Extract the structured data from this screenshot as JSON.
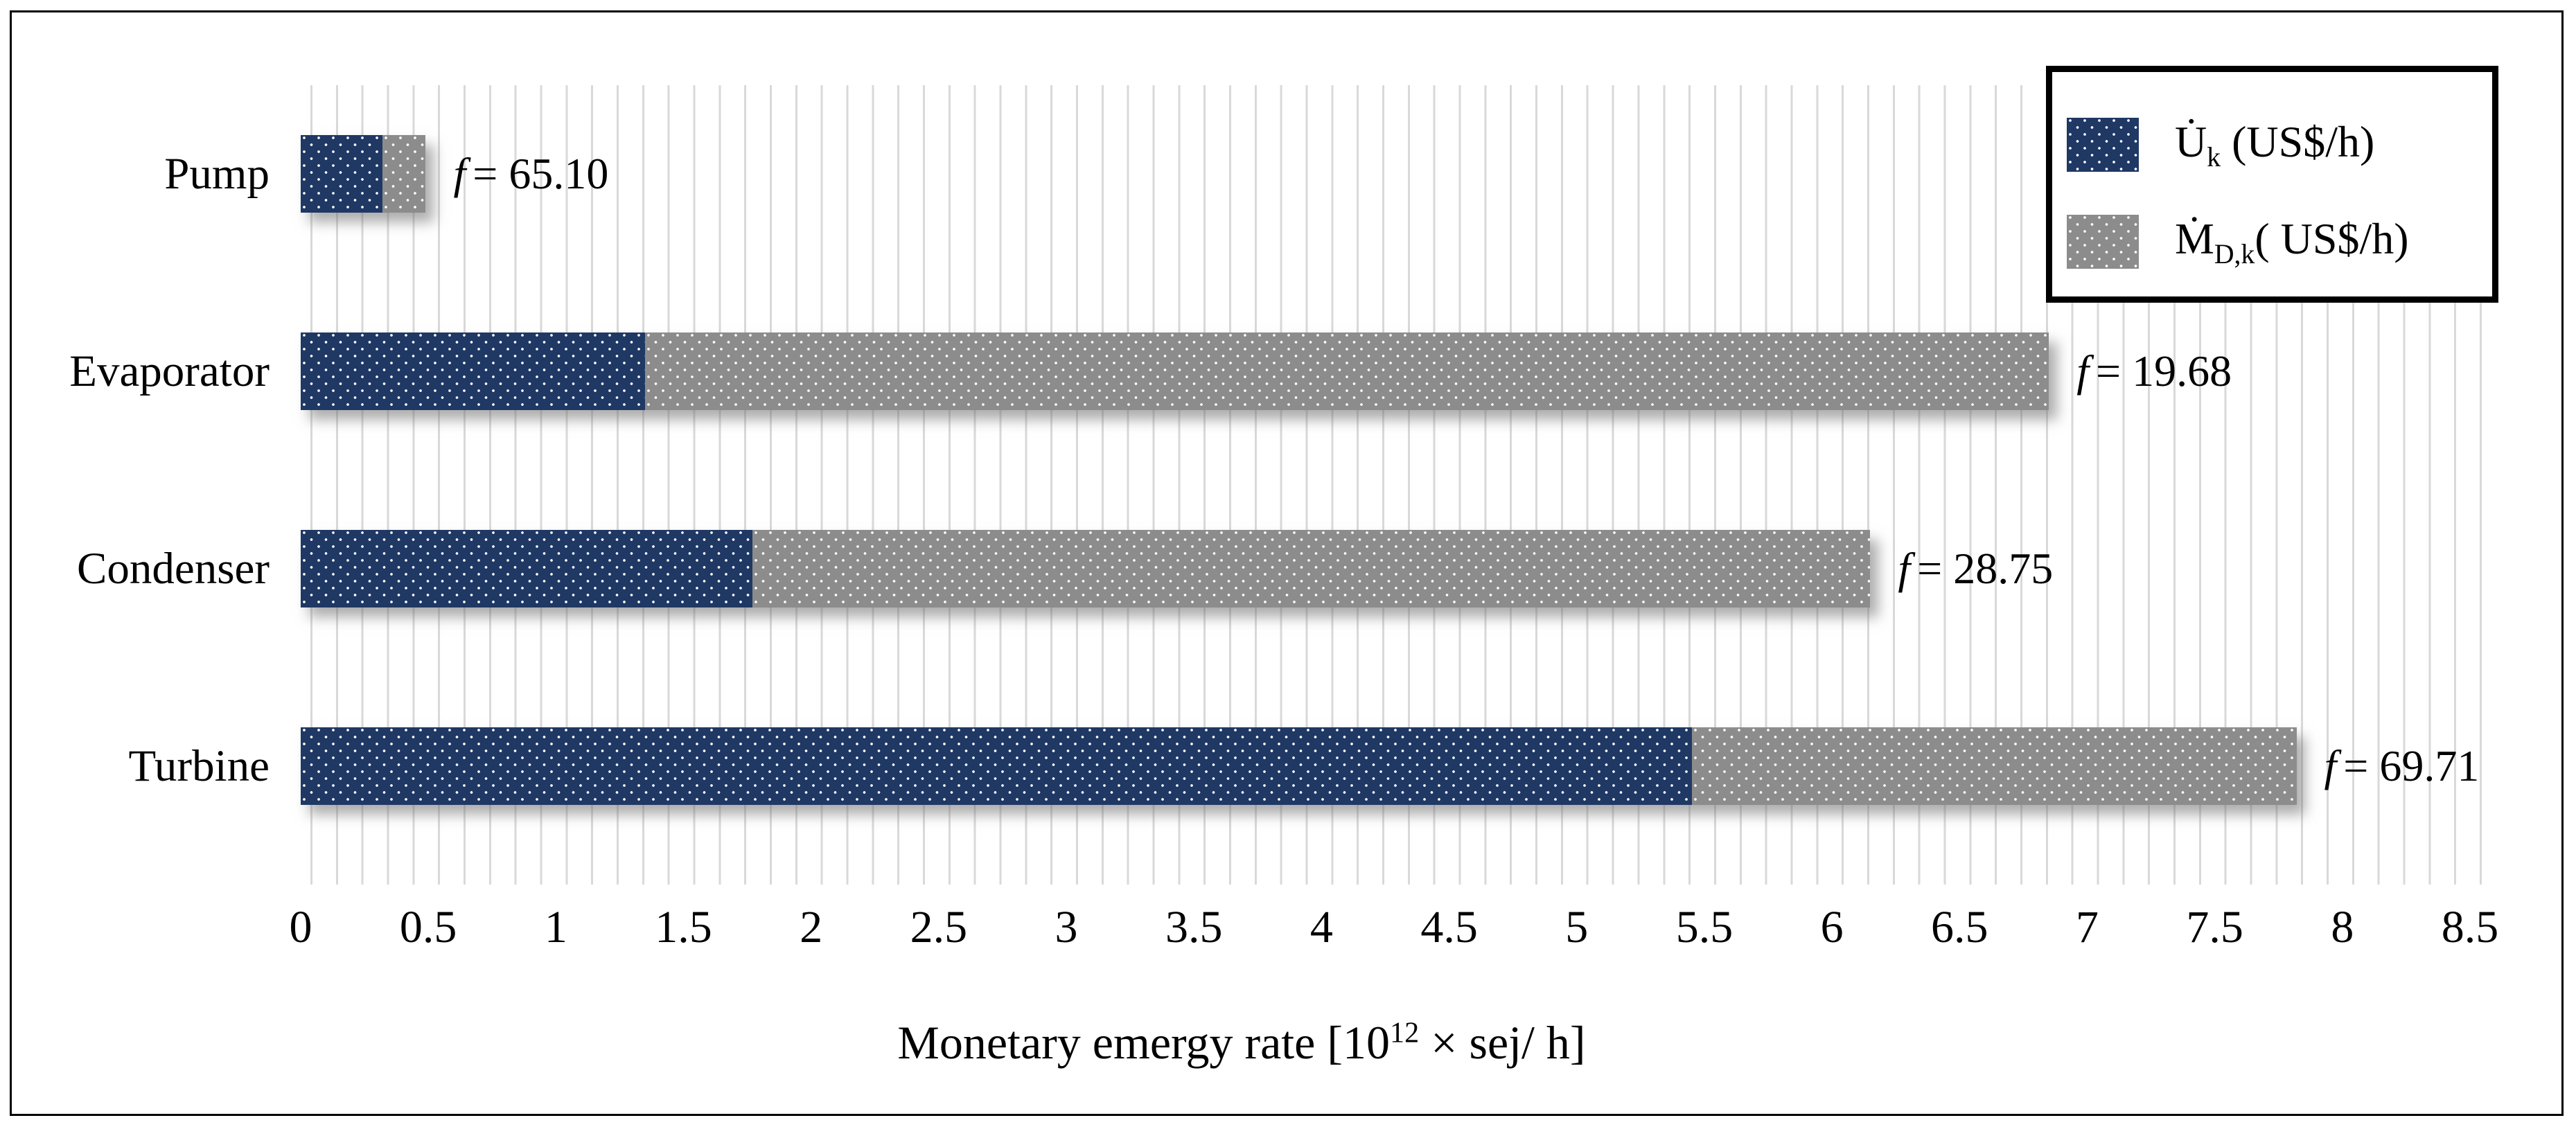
{
  "chart_data": {
    "type": "bar",
    "orientation": "horizontal",
    "stacked": true,
    "grid": "minor-vertical",
    "legend_position": "top-right",
    "categories": [
      "Pump",
      "Evaporator",
      "Condenser",
      "Turbine"
    ],
    "series": [
      {
        "name": "U̇k (US$/h)",
        "color": "#1F3864",
        "values": [
          0.32,
          1.35,
          1.77,
          5.45
        ]
      },
      {
        "name": "ṀD,k( US$/h)",
        "color": "#8C8C8C",
        "values": [
          0.17,
          5.5,
          4.38,
          2.37
        ]
      }
    ],
    "totals": [
      0.49,
      6.85,
      6.15,
      7.82
    ],
    "annotations": [
      {
        "category": "Pump",
        "symbol": "f",
        "rest": "= 65.10",
        "f": 65.1
      },
      {
        "category": "Evaporator",
        "symbol": "f",
        "rest": "= 19.68",
        "f": 19.68
      },
      {
        "category": "Condenser",
        "symbol": "f",
        "rest": "= 28.75",
        "f": 28.75
      },
      {
        "category": "Turbine",
        "symbol": "f",
        "rest": "= 69.71",
        "f": 69.71
      }
    ],
    "xlabel": "Monetary emergy rate [10¹² × sej/ h]",
    "xlim": [
      0,
      8.5
    ],
    "x_major_tick": 0.5,
    "x_minor_grid": 0.1,
    "gridline_color": "#D9D9D9"
  },
  "axis": {
    "tick_labels": [
      "0",
      "0.5",
      "1",
      "1.5",
      "2",
      "2.5",
      "3",
      "3.5",
      "4",
      "4.5",
      "5",
      "5.5",
      "6",
      "6.5",
      "7",
      "7.5",
      "8",
      "8.5"
    ],
    "title_prefix": "Monetary emergy rate [10",
    "title_sup": "12",
    "title_suffix": " × sej/ h]"
  },
  "legend": {
    "items": [
      {
        "symbol": "U̇",
        "subscript": "k",
        "unit": " (US$/h)",
        "color": "#1F3864"
      },
      {
        "symbol": "Ṁ",
        "subscript": "D,k",
        "unit": "( US$/h)",
        "color": "#8C8C8C"
      }
    ]
  }
}
